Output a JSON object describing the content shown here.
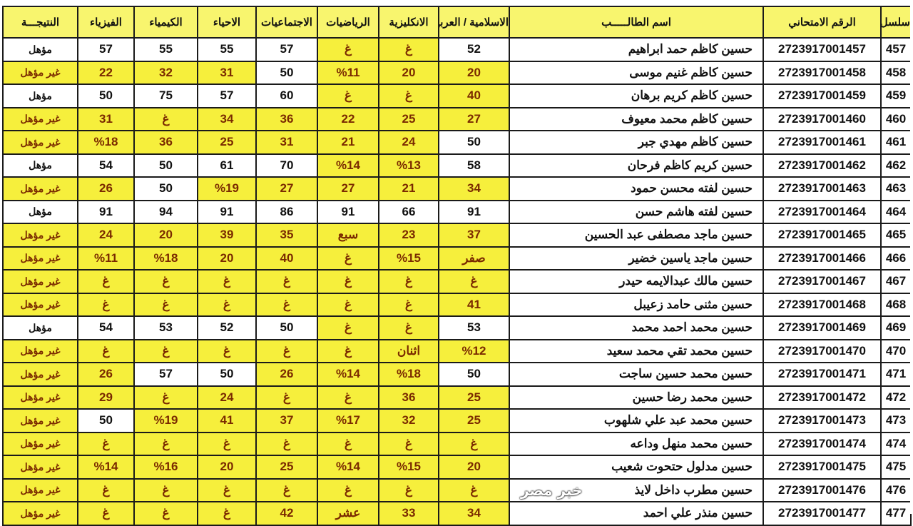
{
  "headers": [
    "سلسل",
    "الرقم الامتحاني",
    "اسم الطالـــــب",
    "الاسلامية / العربية",
    "الانكليزية",
    "الرياضيات",
    "الاجتماعيات",
    "الاحياء",
    "الكيمياء",
    "الفيزياء",
    "النتيجـــة"
  ],
  "rows": [
    [
      "457",
      "2723917001457",
      "حسين كاظم حمد ابراهيم",
      "52",
      "غ",
      "غ",
      "57",
      "55",
      "55",
      "57",
      "مؤهل"
    ],
    [
      "458",
      "2723917001458",
      "حسين كاظم غنيم موسى",
      "20",
      "20",
      "%11",
      "50",
      "31",
      "32",
      "22",
      "غير مؤهل"
    ],
    [
      "459",
      "2723917001459",
      "حسين كاظم كريم برهان",
      "40",
      "غ",
      "غ",
      "60",
      "57",
      "75",
      "50",
      "مؤهل"
    ],
    [
      "460",
      "2723917001460",
      "حسين كاظم محمد معيوف",
      "27",
      "25",
      "22",
      "36",
      "34",
      "غ",
      "31",
      "غير مؤهل"
    ],
    [
      "461",
      "2723917001461",
      "حسين كاظم مهدي جبر",
      "50",
      "24",
      "21",
      "31",
      "25",
      "36",
      "%18",
      "غير مؤهل"
    ],
    [
      "462",
      "2723917001462",
      "حسين كريم كاظم فرحان",
      "58",
      "%13",
      "%14",
      "70",
      "61",
      "50",
      "54",
      "مؤهل"
    ],
    [
      "463",
      "2723917001463",
      "حسين لفته محسن حمود",
      "34",
      "21",
      "27",
      "27",
      "%19",
      "50",
      "26",
      "غير مؤهل"
    ],
    [
      "464",
      "2723917001464",
      "حسين لفته هاشم حسن",
      "91",
      "66",
      "91",
      "86",
      "91",
      "94",
      "91",
      "مؤهل"
    ],
    [
      "465",
      "2723917001465",
      "حسين ماجد مصطفى عبد الحسين",
      "37",
      "23",
      "سبع",
      "35",
      "39",
      "20",
      "24",
      "غير مؤهل"
    ],
    [
      "466",
      "2723917001466",
      "حسين ماجد ياسين خضير",
      "صفر",
      "%15",
      "غ",
      "40",
      "20",
      "%18",
      "%11",
      "غير مؤهل"
    ],
    [
      "467",
      "2723917001467",
      "حسين مالك عبدالايمه حيدر",
      "غ",
      "غ",
      "غ",
      "غ",
      "غ",
      "غ",
      "غ",
      "غير مؤهل"
    ],
    [
      "468",
      "2723917001468",
      "حسين مثنى حامد زعيبل",
      "41",
      "غ",
      "غ",
      "غ",
      "غ",
      "غ",
      "غ",
      "غير مؤهل"
    ],
    [
      "469",
      "2723917001469",
      "حسين محمد احمد محمد",
      "53",
      "غ",
      "غ",
      "50",
      "52",
      "53",
      "54",
      "مؤهل"
    ],
    [
      "470",
      "2723917001470",
      "حسين محمد تقي محمد سعيد",
      "%12",
      "اثنان",
      "غ",
      "غ",
      "غ",
      "غ",
      "غ",
      "غير مؤهل"
    ],
    [
      "471",
      "2723917001471",
      "حسين محمد حسين ساجت",
      "50",
      "%18",
      "%14",
      "26",
      "50",
      "57",
      "26",
      "غير مؤهل"
    ],
    [
      "472",
      "2723917001472",
      "حسين محمد رضا حسين",
      "25",
      "36",
      "غ",
      "غ",
      "24",
      "غ",
      "29",
      "غير مؤهل"
    ],
    [
      "473",
      "2723917001473",
      "حسين محمد عبد علي شلهوب",
      "25",
      "32",
      "%17",
      "37",
      "41",
      "%19",
      "50",
      "غير مؤهل"
    ],
    [
      "474",
      "2723917001474",
      "حسين محمد منهل وداعه",
      "غ",
      "غ",
      "غ",
      "غ",
      "غ",
      "غ",
      "غ",
      "غير مؤهل"
    ],
    [
      "475",
      "2723917001475",
      "حسين مدلول حتحوت شعيب",
      "20",
      "%15",
      "%14",
      "25",
      "20",
      "%16",
      "%14",
      "غير مؤهل"
    ],
    [
      "476",
      "2723917001476",
      "حسين مطرب داخل لايذ",
      "غ",
      "غ",
      "غ",
      "غ",
      "غ",
      "غ",
      "غ",
      "غير مؤهل"
    ],
    [
      "477",
      "2723917001477",
      "حسين منذر علي احمد",
      "34",
      "33",
      "عشر",
      "42",
      "غ",
      "غ",
      "غ",
      "غير مؤهل"
    ]
  ],
  "watermark": "خبر مصر",
  "colors": {
    "highlight": "#f6ef3c",
    "header": "#f8f56e",
    "fail_text": "#7a2a00"
  }
}
